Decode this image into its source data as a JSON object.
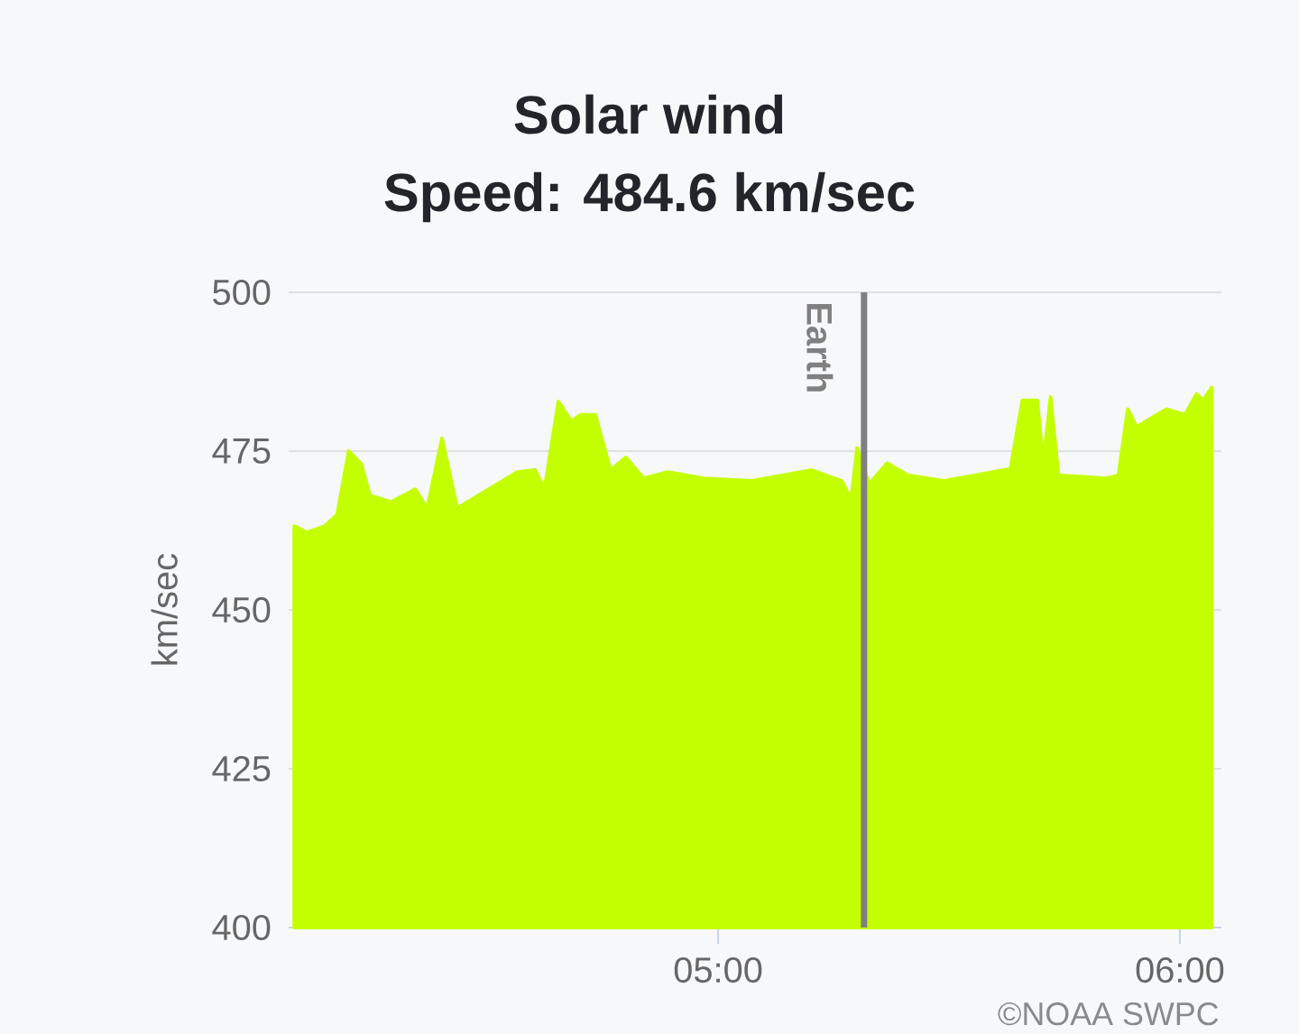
{
  "chart_data": {
    "type": "area",
    "title": "Solar wind",
    "subtitle": "Speed: 484.6 km/sec",
    "ylabel": "km/sec",
    "annotations": [
      "©NOAA SWPC"
    ],
    "x": [
      4.082,
      4.109,
      4.148,
      4.175,
      4.2,
      4.227,
      4.246,
      4.292,
      4.344,
      4.37,
      4.402,
      4.435,
      4.526,
      4.565,
      4.604,
      4.624,
      4.654,
      4.682,
      4.702,
      4.734,
      4.767,
      4.8,
      4.839,
      4.891,
      4.969,
      5.073,
      5.203,
      5.268,
      5.288,
      5.301,
      5.327,
      5.366,
      5.411,
      5.489,
      5.633,
      5.659,
      5.691,
      5.704,
      5.72,
      5.737,
      5.841,
      5.867,
      5.887,
      5.906,
      5.971,
      6.011,
      6.036,
      6.05,
      6.069
    ],
    "series": [
      {
        "color": "#c4ff00",
        "values": [
          463.2,
          462.2,
          463.2,
          465,
          475,
          473,
          468,
          467,
          469,
          466,
          477,
          466,
          470,
          471.7,
          472,
          469,
          482.8,
          479.7,
          480.7,
          480.7,
          472,
          474,
          470.7,
          471.7,
          470.7,
          470.3,
          472,
          470.3,
          467.4,
          475.5,
          469.8,
          473.1,
          471.2,
          470.3,
          472.2,
          483,
          483,
          473.1,
          483.5,
          471.2,
          470.7,
          471.2,
          481.6,
          478.8,
          481.6,
          480.7,
          484,
          483,
          485
        ]
      }
    ],
    "xlim": [
      4.07,
      6.09
    ],
    "ylim": [
      400,
      500
    ],
    "xticks": [
      {
        "value": 5,
        "label": "05:00"
      },
      {
        "value": 6,
        "label": "06:00"
      }
    ],
    "yticks": [
      400,
      425,
      450,
      475,
      500
    ],
    "grid": "y",
    "ref_lines": [
      {
        "axis": "x",
        "value": 5.316,
        "label": "Earth",
        "color": "#808080"
      }
    ]
  }
}
